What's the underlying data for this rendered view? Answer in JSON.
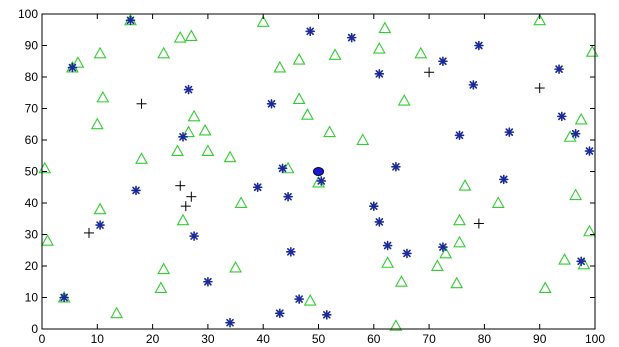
{
  "chart_data": {
    "type": "scatter",
    "xlim": [
      0,
      100
    ],
    "ylim": [
      0,
      100
    ],
    "grid": false,
    "legend": "none",
    "x_ticks": [
      "0",
      "10",
      "20",
      "30",
      "40",
      "50",
      "60",
      "70",
      "80",
      "90",
      "100"
    ],
    "y_ticks": [
      "0",
      "10",
      "20",
      "30",
      "40",
      "50",
      "60",
      "70",
      "80",
      "90",
      "100"
    ],
    "series": [
      {
        "marker": "triangle",
        "color": "#33cc33",
        "points": [
          [
            0.5,
            51
          ],
          [
            1,
            28
          ],
          [
            4,
            10
          ],
          [
            5.5,
            83
          ],
          [
            6.5,
            84.5
          ],
          [
            10,
            65
          ],
          [
            10.5,
            87.5
          ],
          [
            10.5,
            38
          ],
          [
            11,
            73.5
          ],
          [
            13.5,
            5
          ],
          [
            16,
            98
          ],
          [
            18,
            54
          ],
          [
            21.5,
            13
          ],
          [
            22,
            19
          ],
          [
            22,
            87.5
          ],
          [
            24.5,
            56.5
          ],
          [
            25,
            92.5
          ],
          [
            25.5,
            34.5
          ],
          [
            26.5,
            62.5
          ],
          [
            27,
            93
          ],
          [
            27.5,
            67.5
          ],
          [
            29.5,
            63
          ],
          [
            30,
            56.5
          ],
          [
            34,
            54.5
          ],
          [
            35,
            19.5
          ],
          [
            36,
            40
          ],
          [
            40,
            97.5
          ],
          [
            43,
            83
          ],
          [
            44.5,
            51
          ],
          [
            46.5,
            73
          ],
          [
            46.5,
            85.5
          ],
          [
            48,
            68
          ],
          [
            48.5,
            9
          ],
          [
            50,
            46.5
          ],
          [
            52,
            62.5
          ],
          [
            53,
            87
          ],
          [
            58,
            60
          ],
          [
            61,
            89
          ],
          [
            62,
            95.5
          ],
          [
            62.5,
            21
          ],
          [
            64,
            1
          ],
          [
            65,
            15
          ],
          [
            65.5,
            72.5
          ],
          [
            68.5,
            87.5
          ],
          [
            71.5,
            20
          ],
          [
            73,
            24
          ],
          [
            75,
            14.5
          ],
          [
            75.5,
            34.5
          ],
          [
            75.5,
            27.5
          ],
          [
            76.5,
            45.5
          ],
          [
            82.5,
            40
          ],
          [
            90,
            98
          ],
          [
            91,
            13
          ],
          [
            94.5,
            22
          ],
          [
            95.5,
            61
          ],
          [
            96.5,
            42.5
          ],
          [
            97.5,
            66.5
          ],
          [
            98,
            20.5
          ],
          [
            99,
            31
          ],
          [
            99.5,
            88
          ]
        ]
      },
      {
        "marker": "star",
        "color": "#1a2a99",
        "points": [
          [
            4,
            10
          ],
          [
            5.5,
            83
          ],
          [
            10.5,
            33
          ],
          [
            16,
            98
          ],
          [
            17,
            44
          ],
          [
            25.5,
            61
          ],
          [
            26.5,
            76
          ],
          [
            27.5,
            29.5
          ],
          [
            30,
            15
          ],
          [
            34,
            2
          ],
          [
            39,
            45
          ],
          [
            41.5,
            71.5
          ],
          [
            43,
            5
          ],
          [
            43.5,
            51
          ],
          [
            44.5,
            42
          ],
          [
            45,
            24.5
          ],
          [
            46.5,
            9.5
          ],
          [
            48.5,
            94.5
          ],
          [
            50.5,
            47
          ],
          [
            51.5,
            4.5
          ],
          [
            56,
            92.5
          ],
          [
            60,
            39
          ],
          [
            61,
            81
          ],
          [
            61,
            34
          ],
          [
            62.5,
            26.5
          ],
          [
            64,
            51.5
          ],
          [
            66,
            24
          ],
          [
            72.5,
            26
          ],
          [
            72.5,
            85
          ],
          [
            75.5,
            61.5
          ],
          [
            78,
            77.5
          ],
          [
            79,
            90
          ],
          [
            83.5,
            47.5
          ],
          [
            84.5,
            62.5
          ],
          [
            93.5,
            82.5
          ],
          [
            94,
            67.5
          ],
          [
            96.5,
            62
          ],
          [
            97.5,
            21.5
          ],
          [
            99,
            56.5
          ]
        ]
      },
      {
        "marker": "plus",
        "color": "#000000",
        "points": [
          [
            8.5,
            30.5
          ],
          [
            18,
            71.5
          ],
          [
            25,
            45.5
          ],
          [
            26,
            39
          ],
          [
            27,
            42
          ],
          [
            70,
            81.5
          ],
          [
            79,
            33.5
          ],
          [
            90,
            76.5
          ]
        ]
      },
      {
        "marker": "dot",
        "color": "#1a1acc",
        "points": [
          [
            50,
            50
          ]
        ]
      }
    ]
  }
}
